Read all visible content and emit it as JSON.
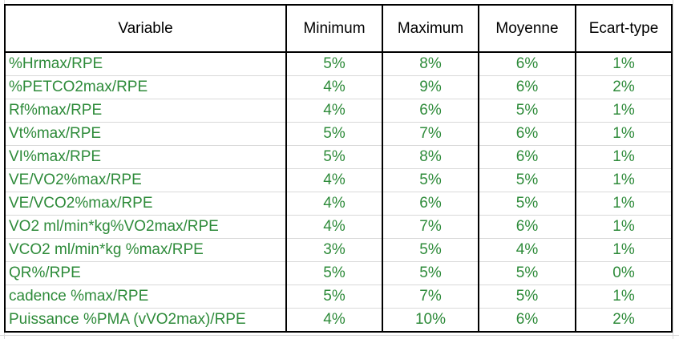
{
  "colors": {
    "value_text": "#2e8b3a",
    "header_text": "#000000",
    "border": "#000000",
    "gridline": "#d9d9d9"
  },
  "table": {
    "headers": [
      "Variable",
      "Minimum",
      "Maximum",
      "Moyenne",
      "Ecart-type"
    ],
    "rows": [
      [
        "%Hrmax/RPE",
        "5%",
        "8%",
        "6%",
        "1%"
      ],
      [
        "%PETCO2max/RPE",
        "4%",
        "9%",
        "6%",
        "2%"
      ],
      [
        "Rf%max/RPE",
        "4%",
        "6%",
        "5%",
        "1%"
      ],
      [
        "Vt%max/RPE",
        "5%",
        "7%",
        "6%",
        "1%"
      ],
      [
        "VI%max/RPE",
        "5%",
        "8%",
        "6%",
        "1%"
      ],
      [
        "VE/VO2%max/RPE",
        "4%",
        "5%",
        "5%",
        "1%"
      ],
      [
        "VE/VCO2%max/RPE",
        "4%",
        "6%",
        "5%",
        "1%"
      ],
      [
        "VO2 ml/min*kg%VO2max/RPE",
        "4%",
        "7%",
        "6%",
        "1%"
      ],
      [
        "VCO2 ml/min*kg %max/RPE",
        "3%",
        "5%",
        "4%",
        "1%"
      ],
      [
        "QR%/RPE",
        "5%",
        "5%",
        "5%",
        "0%"
      ],
      [
        "cadence %max/RPE",
        "5%",
        "7%",
        "5%",
        "1%"
      ],
      [
        "Puissance %PMA (vVO2max)/RPE",
        "4%",
        "10%",
        "6%",
        "2%"
      ]
    ]
  }
}
